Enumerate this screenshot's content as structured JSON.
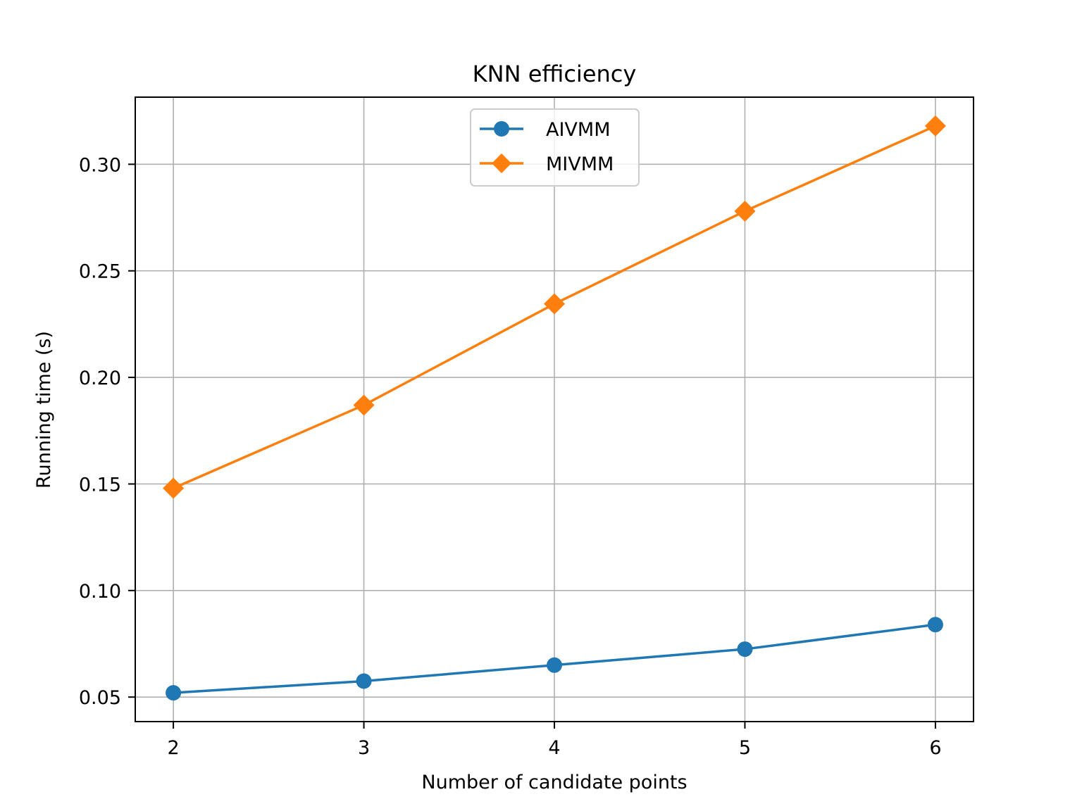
{
  "chart_data": {
    "type": "line",
    "title": "KNN efficiency",
    "xlabel": "Number of candidate points",
    "ylabel": "Running time (s)",
    "x": [
      2,
      3,
      4,
      5,
      6
    ],
    "x_ticks": [
      "2",
      "3",
      "4",
      "5",
      "6"
    ],
    "y_ticks": [
      0.05,
      0.1,
      0.15,
      0.2,
      0.25,
      0.3
    ],
    "y_tick_labels": [
      "0.05",
      "0.10",
      "0.15",
      "0.20",
      "0.25",
      "0.30"
    ],
    "xlim": [
      1.8,
      6.2
    ],
    "ylim": [
      0.0385,
      0.3315
    ],
    "grid": true,
    "legend_position": "upper center",
    "series": [
      {
        "name": "AIVMM",
        "values": [
          0.052,
          0.0575,
          0.065,
          0.0725,
          0.084
        ],
        "color": "#1f77b4",
        "marker": "circle"
      },
      {
        "name": "MIVMM",
        "values": [
          0.148,
          0.187,
          0.2345,
          0.278,
          0.318
        ],
        "color": "#ff7f0e",
        "marker": "diamond"
      }
    ]
  }
}
